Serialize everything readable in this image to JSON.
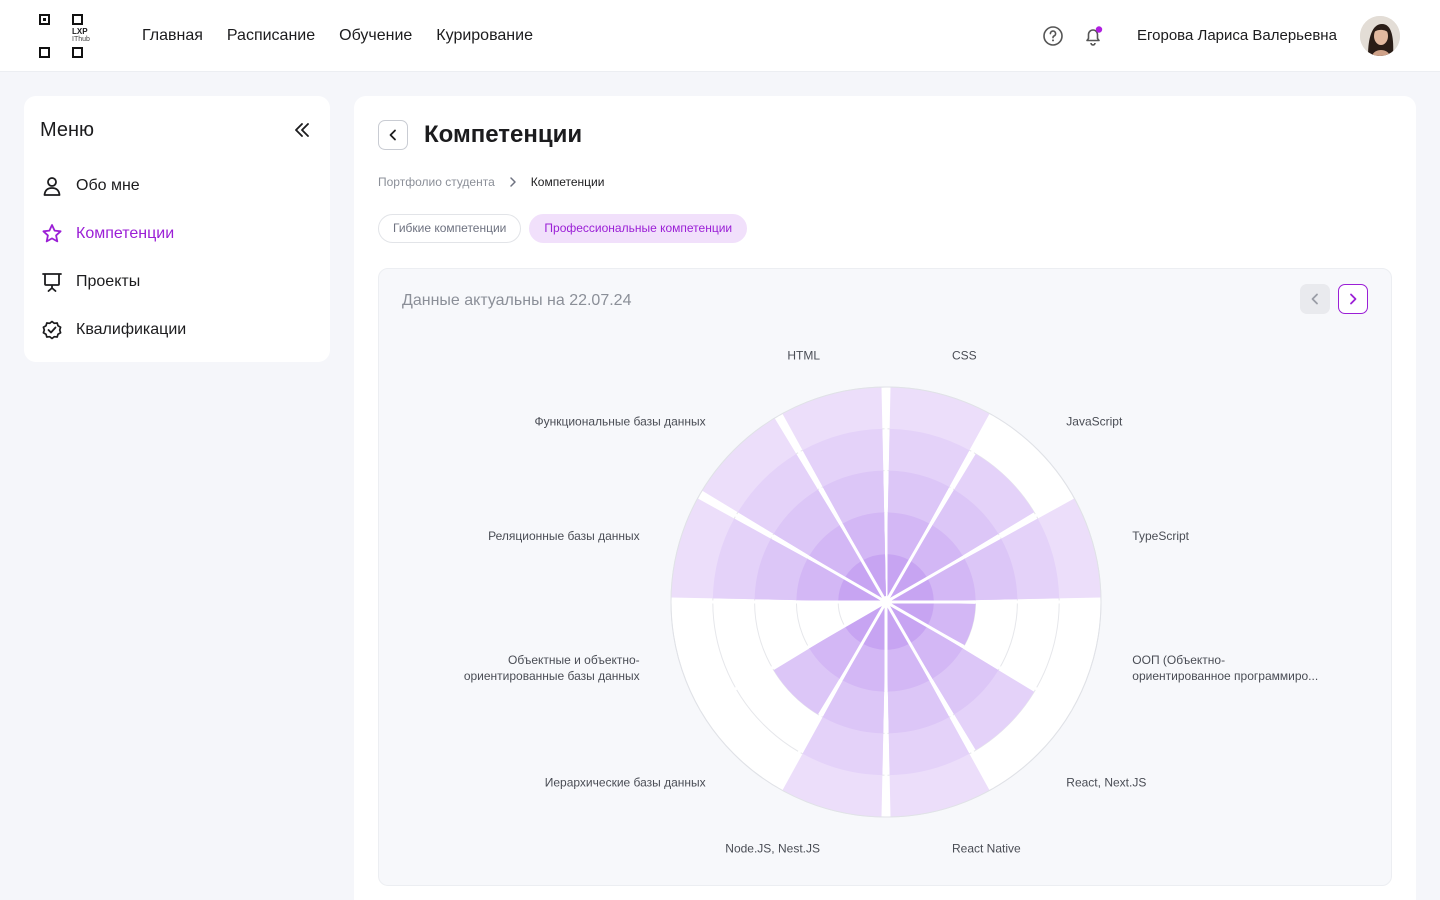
{
  "header": {
    "logo": {
      "line1": "LXP",
      "line2": "IThub"
    },
    "nav": [
      "Главная",
      "Расписание",
      "Обучение",
      "Курирование"
    ],
    "user_name": "Егорова Лариса Валерьевна",
    "notification_dot_color": "#b01fe0"
  },
  "sidebar": {
    "title": "Меню",
    "items": [
      {
        "label": "Обо мне",
        "icon": "user-icon",
        "active": false
      },
      {
        "label": "Компетенции",
        "icon": "star-icon",
        "active": true
      },
      {
        "label": "Проекты",
        "icon": "presentation-icon",
        "active": false
      },
      {
        "label": "Квалификации",
        "icon": "badge-check-icon",
        "active": false
      }
    ]
  },
  "main": {
    "title": "Компетенции",
    "breadcrumb": {
      "parent": "Портфолио студента",
      "current": "Компетенции"
    },
    "tabs": [
      {
        "label": "Гибкие компетенции",
        "active": false
      },
      {
        "label": "Профессиональные компетенции",
        "active": true
      }
    ],
    "data_date": "Данные актуальны на 22.07.24"
  },
  "colors": {
    "accent": "#9b1fd6",
    "segment_light": "#ecdefa",
    "segment_dark": "#c7a4f2"
  },
  "chart_data": {
    "type": "polar-area",
    "max_level": 5,
    "categories": [
      {
        "name": "CSS",
        "label_lines": [
          "CSS"
        ],
        "value": 5
      },
      {
        "name": "JavaScript",
        "label_lines": [
          "JavaScript"
        ],
        "value": 4
      },
      {
        "name": "TypeScript",
        "label_lines": [
          "TypeScript"
        ],
        "value": 5
      },
      {
        "name": "ООП (Объектно-ориентированное программирование)",
        "label_lines": [
          "ООП (Объектно-",
          "ориентированное программиро..."
        ],
        "value": 2
      },
      {
        "name": "React, Next.JS",
        "label_lines": [
          "React, Next.JS"
        ],
        "value": 4
      },
      {
        "name": "React Native",
        "label_lines": [
          "React Native"
        ],
        "value": 5
      },
      {
        "name": "Node.JS, Nest.JS",
        "label_lines": [
          "Node.JS, Nest.JS"
        ],
        "value": 5
      },
      {
        "name": "Иерархические базы данных",
        "label_lines": [
          "Иерархические базы данных"
        ],
        "value": 3
      },
      {
        "name": "Объектные и объектно-ориентированные базы данных",
        "label_lines": [
          "Объектные и объектно-",
          "ориентированные базы данных"
        ],
        "value": 0
      },
      {
        "name": "Реляционные базы данных",
        "label_lines": [
          "Реляционные базы данных"
        ],
        "value": 5
      },
      {
        "name": "Функциональные базы данных",
        "label_lines": [
          "Функциональные базы данных"
        ],
        "value": 5
      },
      {
        "name": "HTML",
        "label_lines": [
          "HTML"
        ],
        "value": 5
      }
    ]
  }
}
